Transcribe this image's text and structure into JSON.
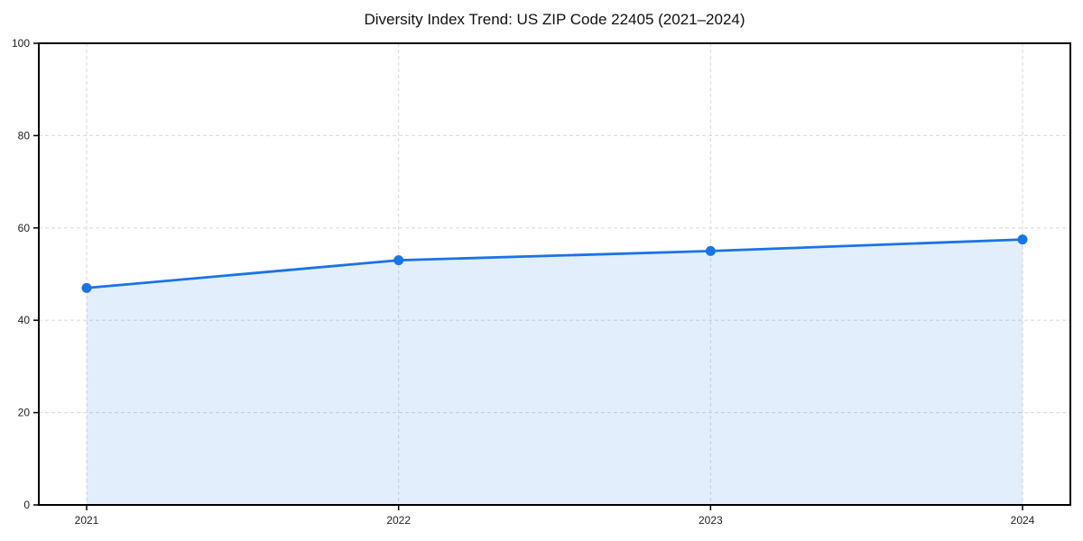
{
  "chart_data": {
    "type": "area",
    "title": "Diversity Index Trend: US ZIP Code 22405 (2021–2024)",
    "x": [
      "2021",
      "2022",
      "2023",
      "2024"
    ],
    "series": [
      {
        "name": "Diversity Index",
        "values": [
          47,
          53,
          55,
          57.5
        ]
      }
    ],
    "xlabel": "",
    "ylabel": "",
    "ylim": [
      0,
      100
    ],
    "yticks": [
      0,
      20,
      40,
      60,
      80,
      100
    ],
    "xticks": [
      "2021",
      "2022",
      "2023",
      "2024"
    ],
    "grid": "dashed, horizontal at yticks and vertical at each year",
    "legend": "none",
    "markers": "filled circles on each data point",
    "colors": {
      "line": "#1a73e8",
      "fill": "rgba(26,115,232,0.12)",
      "grid": "#dcdcdc",
      "axis": "#000000",
      "text": "#222222",
      "background": "#ffffff"
    }
  }
}
